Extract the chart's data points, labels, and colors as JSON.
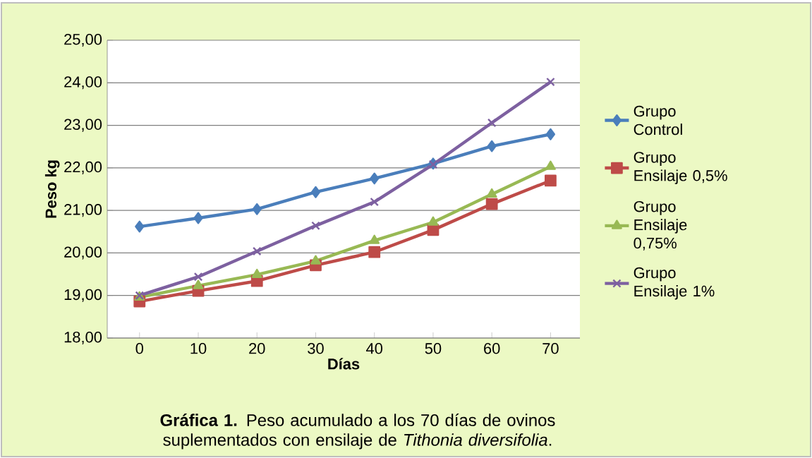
{
  "chart_data": {
    "type": "line",
    "xlabel": "Días",
    "ylabel": "Peso kg",
    "categories": [
      "0",
      "10",
      "20",
      "30",
      "40",
      "50",
      "60",
      "70"
    ],
    "series": [
      {
        "name": "Grupo Control",
        "color": "#4a7ebb",
        "marker": "diamond",
        "values": [
          20.62,
          20.82,
          21.03,
          21.43,
          21.75,
          22.1,
          22.51,
          22.79
        ]
      },
      {
        "name": "Grupo Ensilaje 0,5%",
        "color": "#be4b48",
        "marker": "square",
        "values": [
          18.86,
          19.11,
          19.34,
          19.71,
          20.02,
          20.54,
          21.15,
          21.7
        ]
      },
      {
        "name": "Grupo Ensilaje 0,75%",
        "color": "#98b954",
        "marker": "triangle",
        "values": [
          18.96,
          19.23,
          19.49,
          19.81,
          20.29,
          20.72,
          21.38,
          22.03
        ]
      },
      {
        "name": "Grupo Ensilaje 1%",
        "color": "#7d60a0",
        "marker": "cross",
        "values": [
          19.0,
          19.44,
          20.04,
          20.64,
          21.2,
          22.08,
          23.06,
          24.02
        ]
      }
    ],
    "ylim": [
      18,
      25
    ],
    "yticks": [
      {
        "value": 18,
        "label": "18,00"
      },
      {
        "value": 19,
        "label": "19,00"
      },
      {
        "value": 20,
        "label": "20,00"
      },
      {
        "value": 21,
        "label": "21,00"
      },
      {
        "value": 22,
        "label": "22,00"
      },
      {
        "value": 23,
        "label": "23,00"
      },
      {
        "value": 24,
        "label": "24,00"
      },
      {
        "value": 25,
        "label": "25,00"
      }
    ],
    "grid": "y",
    "legend": "right",
    "annotations": [
      "**Gráfica 1.** Peso acumulado a los 70 días de ovinos suplementados con ensilaje de *Tithonia diversifolia*."
    ]
  }
}
